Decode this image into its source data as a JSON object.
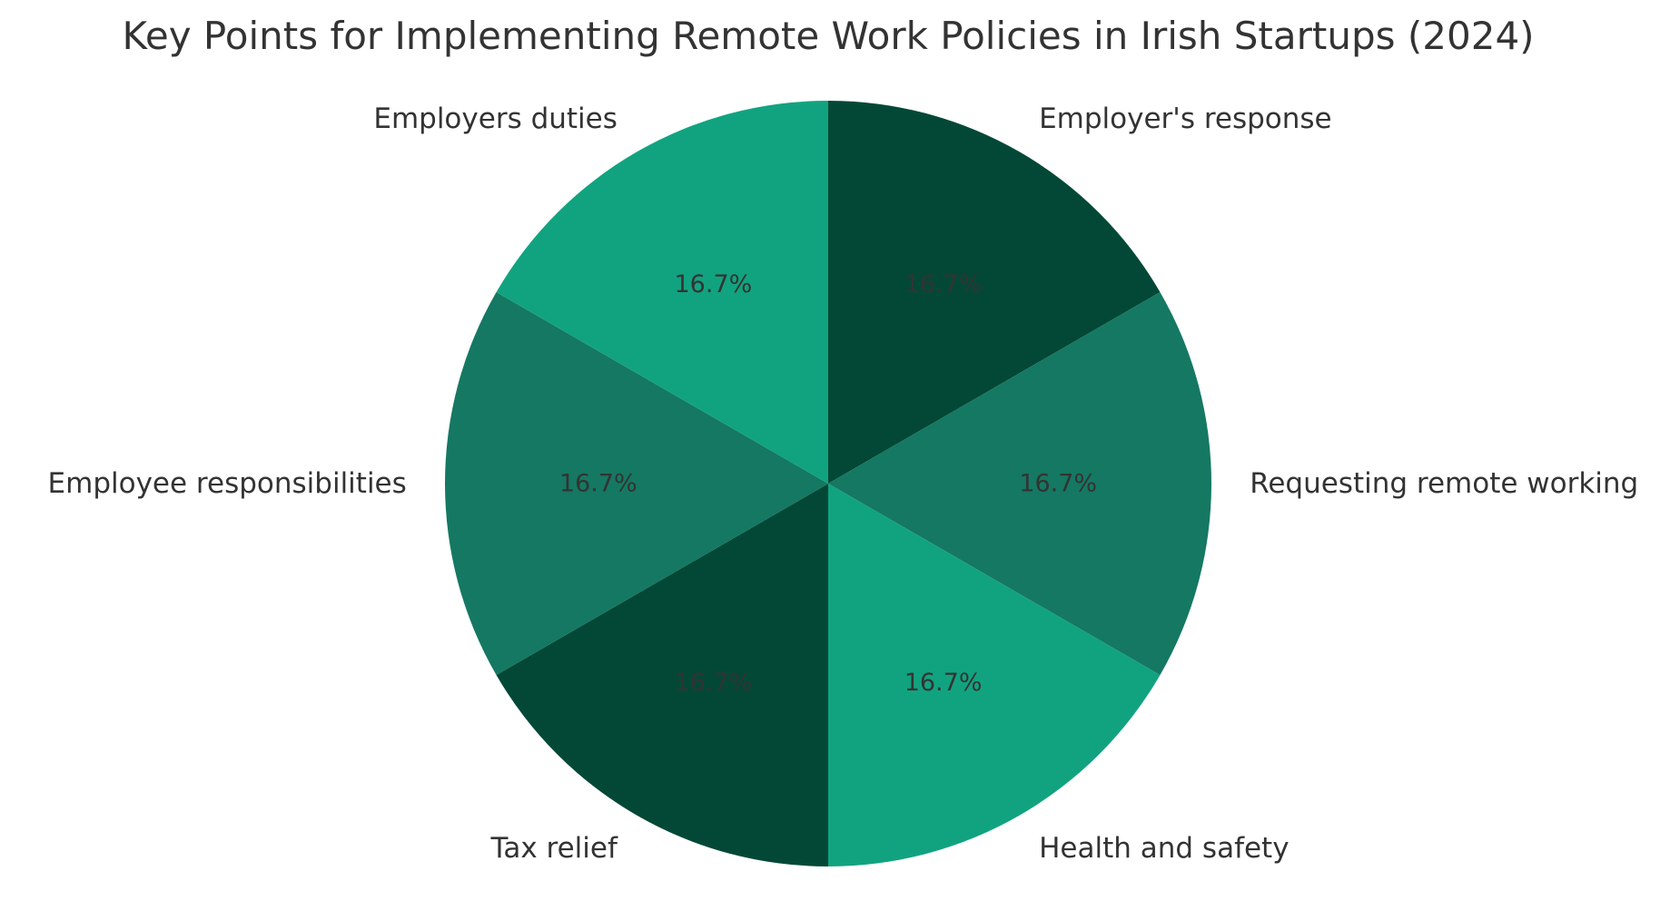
{
  "chart_data": {
    "type": "pie",
    "title": "Key Points for Implementing Remote Work Policies in Irish Startups (2024)",
    "slices": [
      {
        "label": "Employer's response",
        "value": 16.7,
        "pct_label": "16.7%",
        "color": "#034836"
      },
      {
        "label": "Requesting remote working",
        "value": 16.7,
        "pct_label": "16.7%",
        "color": "#157862"
      },
      {
        "label": "Health and safety",
        "value": 16.7,
        "pct_label": "16.7%",
        "color": "#11a37f"
      },
      {
        "label": "Tax relief",
        "value": 16.7,
        "pct_label": "16.7%",
        "color": "#034836"
      },
      {
        "label": "Employee responsibilities",
        "value": 16.7,
        "pct_label": "16.7%",
        "color": "#157862"
      },
      {
        "label": "Employers duties",
        "value": 16.7,
        "pct_label": "16.7%",
        "color": "#11a37f"
      }
    ],
    "start_angle": 90,
    "direction": "clockwise",
    "legend": "none"
  }
}
